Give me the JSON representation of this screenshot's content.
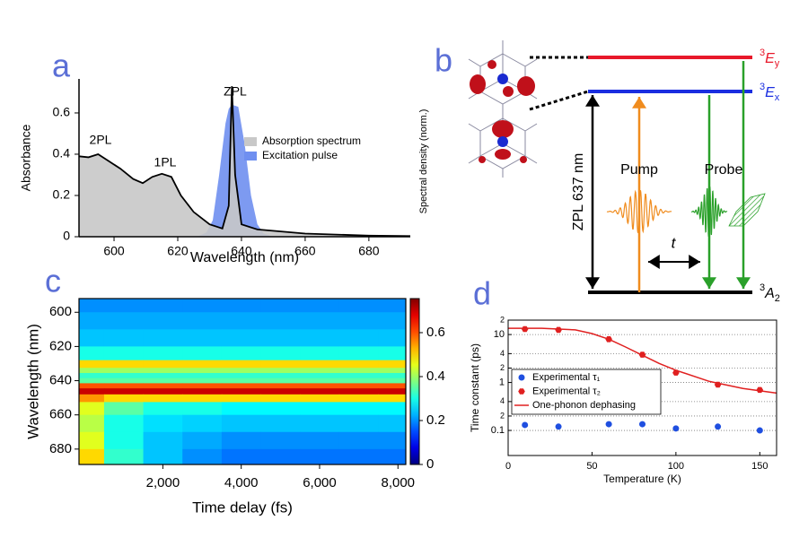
{
  "chart_data": [
    {
      "type": "line",
      "panel_label": "a",
      "xlabel": "Wavelength (nm)",
      "ylabel": "Absorbance",
      "y2label": "Spectral density (norm.)",
      "xlim": [
        589,
        693
      ],
      "xticks": [
        600,
        620,
        640,
        660,
        680
      ],
      "ylim": [
        0,
        0.765
      ],
      "yticks": [
        0,
        0.2,
        0.4,
        0.6
      ],
      "legend": "center right",
      "annotations": [
        "2PL",
        "1PL",
        "ZPL"
      ],
      "series": [
        {
          "name": "Excitation pulse",
          "color": "#6f8ff0",
          "fill": true,
          "x": [
            626,
            629,
            631,
            633,
            635,
            636,
            637,
            639,
            641,
            643,
            645,
            647,
            650
          ],
          "values": [
            0,
            0.02,
            0.08,
            0.3,
            0.55,
            0.62,
            0.64,
            0.63,
            0.45,
            0.2,
            0.06,
            0.015,
            0
          ]
        },
        {
          "name": "Absorption spectrum",
          "color": "#c8c8c8",
          "line_color": "#000000",
          "fill": true,
          "x": [
            589,
            592,
            595,
            598,
            602,
            606,
            609,
            612,
            615,
            618,
            621,
            625,
            630,
            634,
            636,
            637,
            638,
            640,
            645,
            660,
            680,
            693
          ],
          "values": [
            0.39,
            0.385,
            0.4,
            0.37,
            0.33,
            0.28,
            0.26,
            0.29,
            0.305,
            0.29,
            0.2,
            0.12,
            0.06,
            0.04,
            0.15,
            0.73,
            0.3,
            0.06,
            0.035,
            0.015,
            0.005,
            0.003
          ]
        }
      ]
    },
    {
      "type": "heatmap",
      "panel_label": "c",
      "xlabel": "Time delay (fs)",
      "ylabel": "Wavelength (nm)",
      "xlim": [
        -140,
        8200
      ],
      "xticks": [
        {
          "value": 2000,
          "label": "2,000"
        },
        {
          "value": 4000,
          "label": "4,000"
        },
        {
          "value": 6000,
          "label": "6,000"
        },
        {
          "value": 8000,
          "label": "8,000"
        }
      ],
      "ylim": [
        592,
        689
      ],
      "y_inverted": true,
      "yticks": [
        600,
        620,
        640,
        660,
        680
      ],
      "colorbar": {
        "lim": [
          0,
          0.755
        ],
        "ticks": [
          0,
          0.2,
          0.4,
          0.6
        ],
        "colormap": "jet"
      },
      "x": [
        0,
        1000,
        2000,
        3000,
        4000,
        5000,
        6000,
        7000,
        8000
      ],
      "y": [
        595,
        605,
        615,
        625,
        631,
        634,
        637,
        640,
        643,
        646,
        650,
        655,
        665,
        675,
        685
      ],
      "z": [
        [
          0.2,
          0.2,
          0.2,
          0.2,
          0.2,
          0.2,
          0.2,
          0.2,
          0.2
        ],
        [
          0.22,
          0.22,
          0.22,
          0.22,
          0.22,
          0.22,
          0.22,
          0.22,
          0.22
        ],
        [
          0.24,
          0.24,
          0.24,
          0.24,
          0.24,
          0.24,
          0.24,
          0.24,
          0.24
        ],
        [
          0.3,
          0.3,
          0.3,
          0.3,
          0.3,
          0.3,
          0.3,
          0.3,
          0.3
        ],
        [
          0.5,
          0.5,
          0.5,
          0.5,
          0.5,
          0.5,
          0.5,
          0.5,
          0.5
        ],
        [
          0.4,
          0.4,
          0.4,
          0.4,
          0.4,
          0.4,
          0.4,
          0.4,
          0.4
        ],
        [
          0.32,
          0.32,
          0.32,
          0.32,
          0.32,
          0.32,
          0.32,
          0.32,
          0.32
        ],
        [
          0.35,
          0.35,
          0.35,
          0.35,
          0.35,
          0.35,
          0.35,
          0.35,
          0.35
        ],
        [
          0.6,
          0.6,
          0.6,
          0.6,
          0.6,
          0.6,
          0.6,
          0.6,
          0.6
        ],
        [
          0.7,
          0.7,
          0.7,
          0.7,
          0.7,
          0.7,
          0.7,
          0.7,
          0.7
        ],
        [
          0.55,
          0.5,
          0.5,
          0.5,
          0.5,
          0.5,
          0.5,
          0.5,
          0.5
        ],
        [
          0.45,
          0.35,
          0.3,
          0.3,
          0.28,
          0.28,
          0.28,
          0.28,
          0.28
        ],
        [
          0.42,
          0.3,
          0.26,
          0.25,
          0.24,
          0.24,
          0.24,
          0.24,
          0.24
        ],
        [
          0.45,
          0.3,
          0.24,
          0.22,
          0.2,
          0.2,
          0.2,
          0.2,
          0.2
        ],
        [
          0.5,
          0.32,
          0.24,
          0.2,
          0.18,
          0.18,
          0.18,
          0.18,
          0.18
        ]
      ]
    },
    {
      "type": "scatter",
      "panel_label": "d",
      "xlabel": "Temperature (K)",
      "ylabel": "Time constant (ps)",
      "xlim": [
        0,
        160
      ],
      "xticks": [
        0,
        50,
        100,
        150
      ],
      "ylim": [
        0.03,
        20
      ],
      "yscale": "log",
      "grid": true,
      "legend": "center left",
      "yticks": [
        0.1,
        {
          "value": 0.2,
          "label": "2"
        },
        {
          "value": 0.4,
          "label": "4"
        },
        1,
        {
          "value": 2,
          "label": "2"
        },
        {
          "value": 4,
          "label": "4"
        },
        10,
        {
          "value": 20,
          "label": "2"
        }
      ],
      "series": [
        {
          "name": "Experimental τ₁",
          "color": "#1f4fe0",
          "marker": "circle",
          "x": [
            10,
            30,
            60,
            80,
            100,
            125,
            150
          ],
          "values": [
            0.13,
            0.12,
            0.135,
            0.135,
            0.11,
            0.12,
            0.1
          ]
        },
        {
          "name": "Experimental τ₂",
          "color": "#e02020",
          "marker": "hexagon",
          "x": [
            10,
            30,
            60,
            80,
            100,
            125,
            150
          ],
          "values": [
            13,
            12.5,
            8,
            3.8,
            1.6,
            0.9,
            0.7
          ]
        },
        {
          "name": "One-phonon dephasing",
          "color": "#e02020",
          "marker": "line",
          "x": [
            0,
            20,
            40,
            50,
            60,
            70,
            80,
            90,
            100,
            120,
            140,
            160
          ],
          "values": [
            13.5,
            13.5,
            12.5,
            10.5,
            8,
            5.5,
            3.7,
            2.5,
            1.8,
            1.05,
            0.75,
            0.6
          ]
        }
      ]
    }
  ],
  "diagram": {
    "panel_label": "b",
    "levels": [
      {
        "sup": "3",
        "main": "E",
        "sub": "y",
        "color": "#e8182a"
      },
      {
        "sup": "3",
        "main": "E",
        "sub": "x",
        "color": "#1a2ee0"
      },
      {
        "sup": "3",
        "main": "A",
        "sub": "2",
        "color": "#000000"
      }
    ],
    "zpl_label": "ZPL 637 nm",
    "pump_label": "Pump",
    "probe_label": "Probe",
    "delay_label": "t"
  }
}
